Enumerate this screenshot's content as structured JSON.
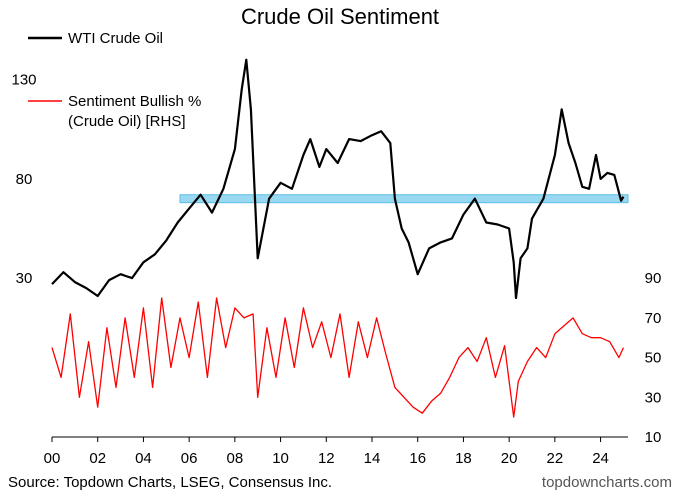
{
  "chart_data": {
    "type": "line",
    "title": "Crude Oil Sentiment",
    "x_tick_labels": [
      "00",
      "02",
      "04",
      "06",
      "08",
      "10",
      "12",
      "14",
      "16",
      "18",
      "20",
      "22",
      "24"
    ],
    "x_tick_years": [
      2000,
      2002,
      2004,
      2006,
      2008,
      2010,
      2012,
      2014,
      2016,
      2018,
      2020,
      2022,
      2024
    ],
    "xlim": [
      2000,
      2025.2
    ],
    "left_axis": {
      "ticks": [
        "30",
        "80",
        "130"
      ],
      "tick_values": [
        30,
        80,
        130
      ],
      "ylim": [
        -50,
        160
      ]
    },
    "right_axis": {
      "ticks": [
        "10",
        "30",
        "50",
        "70",
        "90"
      ],
      "tick_values": [
        10,
        30,
        50,
        70,
        90
      ],
      "ylim": [
        10,
        220
      ]
    },
    "highlight_band": {
      "y_from": 68,
      "y_to": 72,
      "x_from": 2005.6,
      "x_to": 2025.2,
      "color": "#8fd4f0"
    },
    "series": [
      {
        "name": "WTI Crude Oil",
        "axis": "left",
        "color": "#000000",
        "x": [
          2000,
          2000.5,
          2001,
          2001.5,
          2002,
          2002.5,
          2003,
          2003.5,
          2004,
          2004.5,
          2005,
          2005.5,
          2006,
          2006.5,
          2007,
          2007.5,
          2008,
          2008.3,
          2008.5,
          2008.7,
          2009,
          2009.5,
          2010,
          2010.5,
          2011,
          2011.3,
          2011.7,
          2012,
          2012.5,
          2013,
          2013.5,
          2014,
          2014.4,
          2014.8,
          2015,
          2015.3,
          2015.6,
          2016,
          2016.5,
          2017,
          2017.5,
          2018,
          2018.5,
          2019,
          2019.5,
          2020,
          2020.2,
          2020.3,
          2020.5,
          2020.8,
          2021,
          2021.5,
          2022,
          2022.3,
          2022.6,
          2022.9,
          2023.2,
          2023.5,
          2023.8,
          2024,
          2024.3,
          2024.6,
          2024.9,
          2025
        ],
        "values": [
          27,
          33,
          28,
          25,
          21,
          29,
          32,
          30,
          38,
          42,
          49,
          58,
          65,
          72,
          63,
          75,
          95,
          125,
          140,
          115,
          40,
          70,
          78,
          75,
          92,
          100,
          86,
          95,
          88,
          100,
          99,
          102,
          104,
          98,
          70,
          55,
          48,
          32,
          45,
          48,
          50,
          62,
          70,
          58,
          57,
          55,
          38,
          20,
          40,
          45,
          60,
          70,
          92,
          115,
          98,
          88,
          76,
          75,
          92,
          80,
          83,
          82,
          69,
          71
        ]
      },
      {
        "name": "Sentiment Bullish % (Crude Oil) [RHS]",
        "axis": "right",
        "color": "#ff0000",
        "x": [
          2000,
          2000.4,
          2000.8,
          2001.2,
          2001.6,
          2002,
          2002.4,
          2002.8,
          2003.2,
          2003.6,
          2004,
          2004.4,
          2004.8,
          2005.2,
          2005.6,
          2006,
          2006.4,
          2006.8,
          2007.2,
          2007.6,
          2008,
          2008.4,
          2008.8,
          2009,
          2009.4,
          2009.8,
          2010.2,
          2010.6,
          2011,
          2011.4,
          2011.8,
          2012.2,
          2012.6,
          2013,
          2013.4,
          2013.8,
          2014.2,
          2014.6,
          2015,
          2015.4,
          2015.8,
          2016.2,
          2016.6,
          2017,
          2017.4,
          2017.8,
          2018.2,
          2018.6,
          2019,
          2019.4,
          2019.8,
          2020.2,
          2020.4,
          2020.8,
          2021.2,
          2021.6,
          2022,
          2022.4,
          2022.8,
          2023.2,
          2023.6,
          2024,
          2024.4,
          2024.8,
          2025
        ],
        "values": [
          55,
          40,
          72,
          30,
          58,
          25,
          65,
          35,
          70,
          40,
          75,
          35,
          80,
          45,
          70,
          50,
          78,
          40,
          80,
          55,
          75,
          70,
          72,
          30,
          65,
          40,
          70,
          45,
          75,
          55,
          68,
          50,
          72,
          40,
          68,
          50,
          70,
          52,
          35,
          30,
          25,
          22,
          28,
          32,
          40,
          50,
          55,
          48,
          60,
          40,
          56,
          20,
          38,
          48,
          55,
          50,
          62,
          66,
          70,
          62,
          60,
          60,
          58,
          50,
          55
        ]
      }
    ],
    "legend": [
      {
        "label": "WTI Crude Oil",
        "color": "#000000"
      },
      {
        "label_lines": [
          "Sentiment Bullish %",
          "(Crude Oil) [RHS]"
        ],
        "color": "#ff0000"
      }
    ],
    "source": "Source: Topdown Charts, LSEG, Consensus Inc.",
    "website": "topdowncharts.com"
  }
}
